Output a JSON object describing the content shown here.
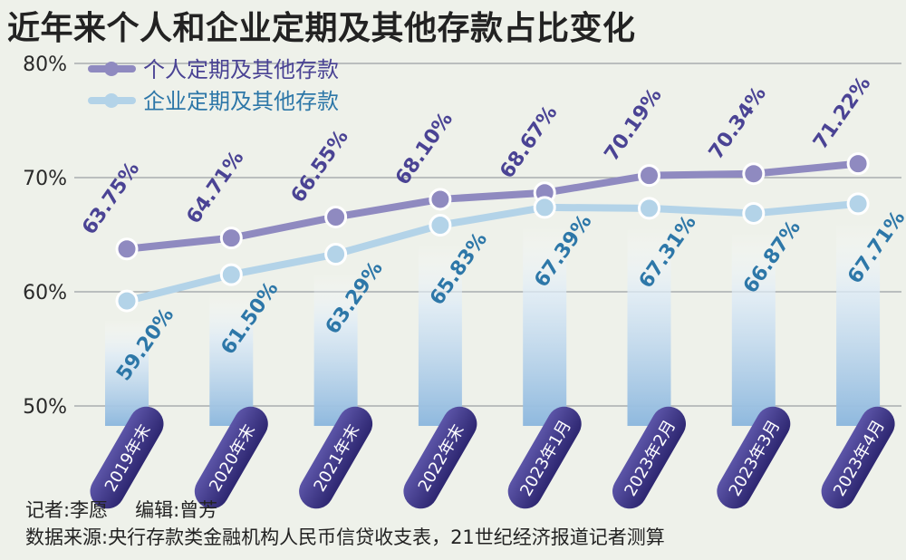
{
  "title": "近年来个人和企业定期及其他存款占比变化",
  "credits": {
    "reporter": "记者:李愿",
    "editor": "编辑:曾芳",
    "source": "数据来源:央行存款类金融机构人民币信贷收支表，21世纪经济报道记者测算"
  },
  "colors": {
    "background": "#eef1ea",
    "personal": "#8f8ac0",
    "enterprise": "#b3d3e8",
    "personal_label": "#4a4394",
    "enterprise_label": "#2d77a8",
    "ribbon": "#3d3586"
  },
  "chart_data": {
    "type": "line",
    "title": "近年来个人和企业定期及其他存款占比变化",
    "categories": [
      "2019年末",
      "2020年末",
      "2021年末",
      "2022年末",
      "2023年1月",
      "2023年2月",
      "2023年3月",
      "2023年4月"
    ],
    "series": [
      {
        "name": "个人定期及其他存款",
        "values": [
          63.75,
          64.71,
          66.55,
          68.1,
          68.67,
          70.19,
          70.34,
          71.22
        ],
        "labels": [
          "63.75%",
          "64.71%",
          "66.55%",
          "68.10%",
          "68.67%",
          "70.19%",
          "70.34%",
          "71.22%"
        ]
      },
      {
        "name": "企业定期及其他存款",
        "values": [
          59.2,
          61.5,
          63.29,
          65.83,
          67.39,
          67.31,
          66.87,
          67.71
        ],
        "labels": [
          "59.20%",
          "61.50%",
          "63.29%",
          "65.83%",
          "67.39%",
          "67.31%",
          "66.87%",
          "67.71%"
        ]
      }
    ],
    "ylim": [
      50,
      80
    ],
    "yticks": [
      50,
      60,
      70,
      80
    ],
    "ytick_labels": [
      "50%",
      "60%",
      "70%",
      "80%"
    ],
    "xlabel": "",
    "ylabel": "",
    "grid": true,
    "legend_position": "top-left"
  }
}
